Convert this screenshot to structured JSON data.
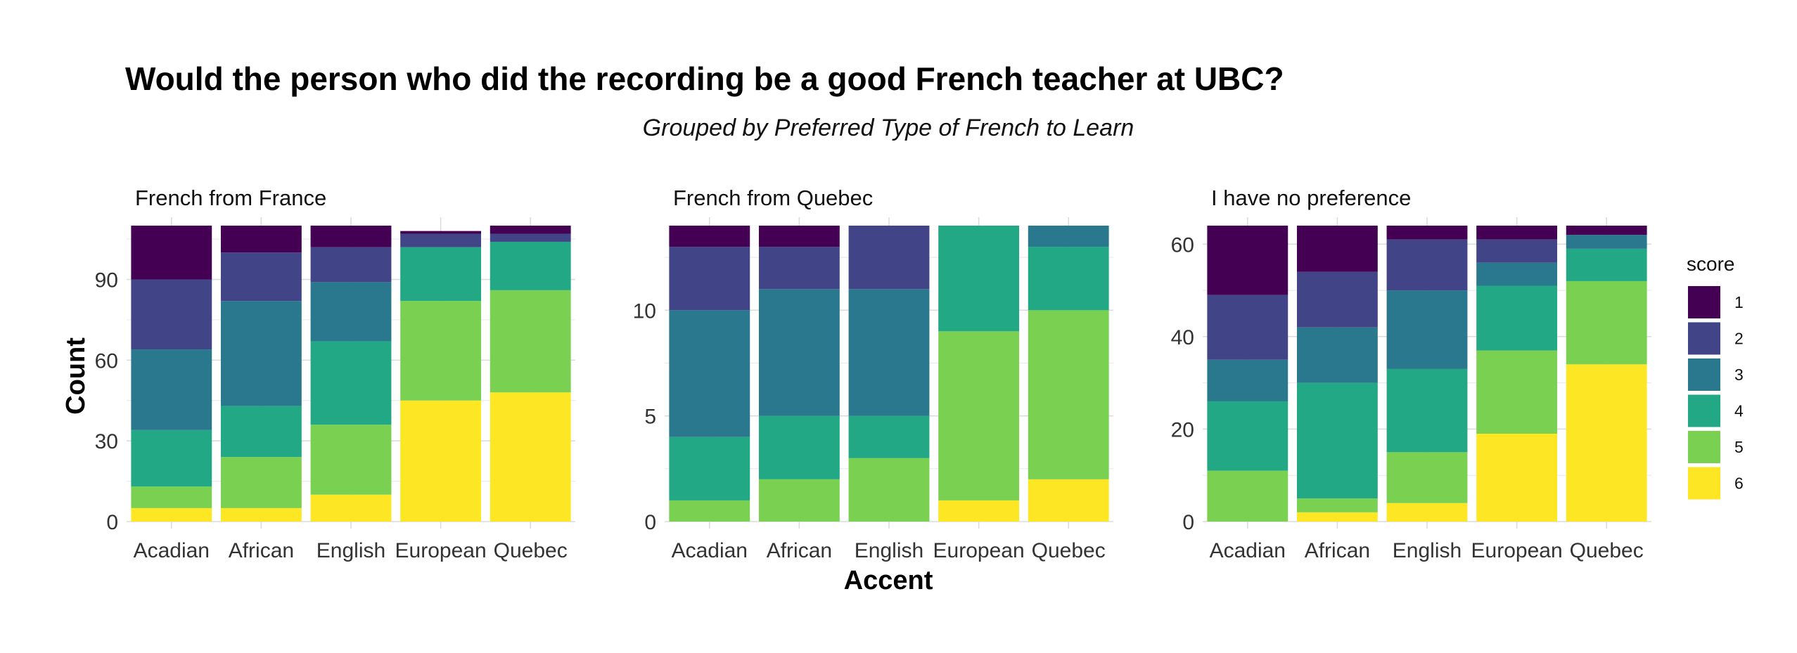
{
  "chart_data": {
    "type": "bar",
    "stacked": true,
    "title": "Would the person who did the recording be a good French teacher at UBC?",
    "subtitle": "Grouped by Preferred Type of French to Learn",
    "xlabel": "Accent",
    "ylabel": "Count",
    "grid": true,
    "legend": {
      "title": "score",
      "placement": "right",
      "entries": [
        "1",
        "2",
        "3",
        "4",
        "5",
        "6"
      ]
    },
    "colors": {
      "1": "#440154",
      "2": "#414487",
      "3": "#2a788e",
      "4": "#22a884",
      "5": "#7ad151",
      "6": "#fde725"
    },
    "categories": [
      "Acadian",
      "African",
      "English",
      "European",
      "Quebec"
    ],
    "facets": [
      {
        "title": "French from France",
        "ylim": [
          0,
          110
        ],
        "yticks": [
          0,
          30,
          60,
          90
        ],
        "series": [
          {
            "name": "6",
            "values": [
              5,
              5,
              10,
              45,
              48
            ]
          },
          {
            "name": "5",
            "values": [
              8,
              19,
              26,
              37,
              38
            ]
          },
          {
            "name": "4",
            "values": [
              21,
              19,
              31,
              20,
              18
            ]
          },
          {
            "name": "3",
            "values": [
              30,
              39,
              22,
              0,
              0
            ]
          },
          {
            "name": "2",
            "values": [
              26,
              18,
              13,
              5,
              3
            ]
          },
          {
            "name": "1",
            "values": [
              20,
              10,
              8,
              1,
              3
            ]
          }
        ]
      },
      {
        "title": "French from Quebec",
        "ylim": [
          0,
          14
        ],
        "yticks": [
          0,
          5,
          10
        ],
        "series": [
          {
            "name": "6",
            "values": [
              0,
              0,
              0,
              1,
              2
            ]
          },
          {
            "name": "5",
            "values": [
              1,
              2,
              3,
              8,
              8
            ]
          },
          {
            "name": "4",
            "values": [
              3,
              3,
              2,
              5,
              3
            ]
          },
          {
            "name": "3",
            "values": [
              6,
              6,
              6,
              0,
              1
            ]
          },
          {
            "name": "2",
            "values": [
              3,
              2,
              3,
              0,
              0
            ]
          },
          {
            "name": "1",
            "values": [
              1,
              1,
              0,
              0,
              0
            ]
          }
        ]
      },
      {
        "title": "I have no preference",
        "ylim": [
          0,
          64
        ],
        "yticks": [
          0,
          20,
          40,
          60
        ],
        "series": [
          {
            "name": "6",
            "values": [
              0,
              2,
              4,
              19,
              34
            ]
          },
          {
            "name": "5",
            "values": [
              11,
              3,
              11,
              18,
              18
            ]
          },
          {
            "name": "4",
            "values": [
              15,
              25,
              18,
              14,
              7
            ]
          },
          {
            "name": "3",
            "values": [
              9,
              12,
              17,
              5,
              3
            ]
          },
          {
            "name": "2",
            "values": [
              14,
              12,
              11,
              5,
              0
            ]
          },
          {
            "name": "1",
            "values": [
              15,
              10,
              3,
              3,
              2
            ]
          }
        ]
      }
    ]
  }
}
